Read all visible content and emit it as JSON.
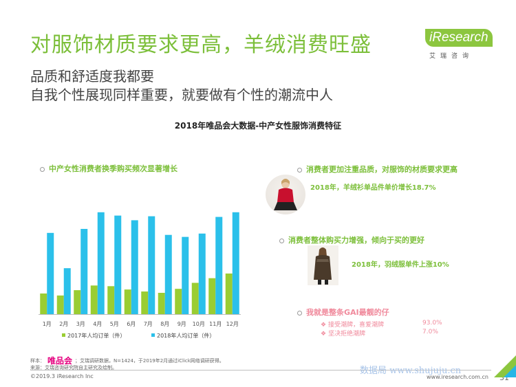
{
  "header": {
    "title": "对服饰材质要求更高，羊绒消费旺盛",
    "subtitle_line1": "品质和舒适度我都要",
    "subtitle_line2": "自我个性展现同样重要，就要做有个性的潮流中人"
  },
  "logo": {
    "brand": "iResearch",
    "brand_cn": "艾瑞咨询"
  },
  "chart_title": "2018年唯品会大数据-中产女性服饰消费特征",
  "left_panel": {
    "heading": "中产女性消费者换季购买频次显著增长"
  },
  "right_panel": {
    "point1_heading": "消费者更加注重品质，对服饰的材质要求更高",
    "point1_note": "2018年，羊绒衫单品件单价增长18.7%",
    "point2_heading": "消费者整体购买力增强，倾向于买的更好",
    "point2_note": "2018年，羽绒服单件上涨10%",
    "point3_heading": "我就是整条GAI最靓的仔",
    "reasons": [
      {
        "label": "接受潮牌，喜爱潮牌",
        "value": "93.0%"
      },
      {
        "label": "坚决拒绝潮牌",
        "value": "7.0%"
      }
    ],
    "reason_marker": "❖"
  },
  "chart_data": {
    "type": "bar",
    "categories": [
      "1月",
      "2月",
      "3月",
      "4月",
      "5月",
      "6月",
      "7月",
      "8月",
      "9月",
      "10月",
      "11月",
      "12月"
    ],
    "series": [
      {
        "name": "2017年人均订单（件）",
        "color": "#9acd32",
        "values": [
          31,
          28,
          36,
          43,
          42,
          37,
          34,
          32,
          38,
          47,
          54,
          61
        ]
      },
      {
        "name": "2018年人均订单（件）",
        "color": "#2bc0ea",
        "values": [
          122,
          69,
          128,
          153,
          148,
          141,
          147,
          119,
          116,
          121,
          146,
          153
        ]
      }
    ],
    "ylim": [
      0,
      160
    ],
    "grid": false,
    "legend": "bottom"
  },
  "footer": {
    "source_label": "样本：",
    "vip_brand": "唯品会",
    "source_text": "；艾瑞调研数据，N=1424，于2019年2月通过iClick网络调研获得。",
    "source_line2": "来源：艾瑞咨询研究院自主研究及绘制。",
    "copyright": "©2019.3 iResearch Inc",
    "watermark": "数据局 www.shujuju.cn",
    "site": "www.iresearch.com.cn",
    "page": "31"
  }
}
